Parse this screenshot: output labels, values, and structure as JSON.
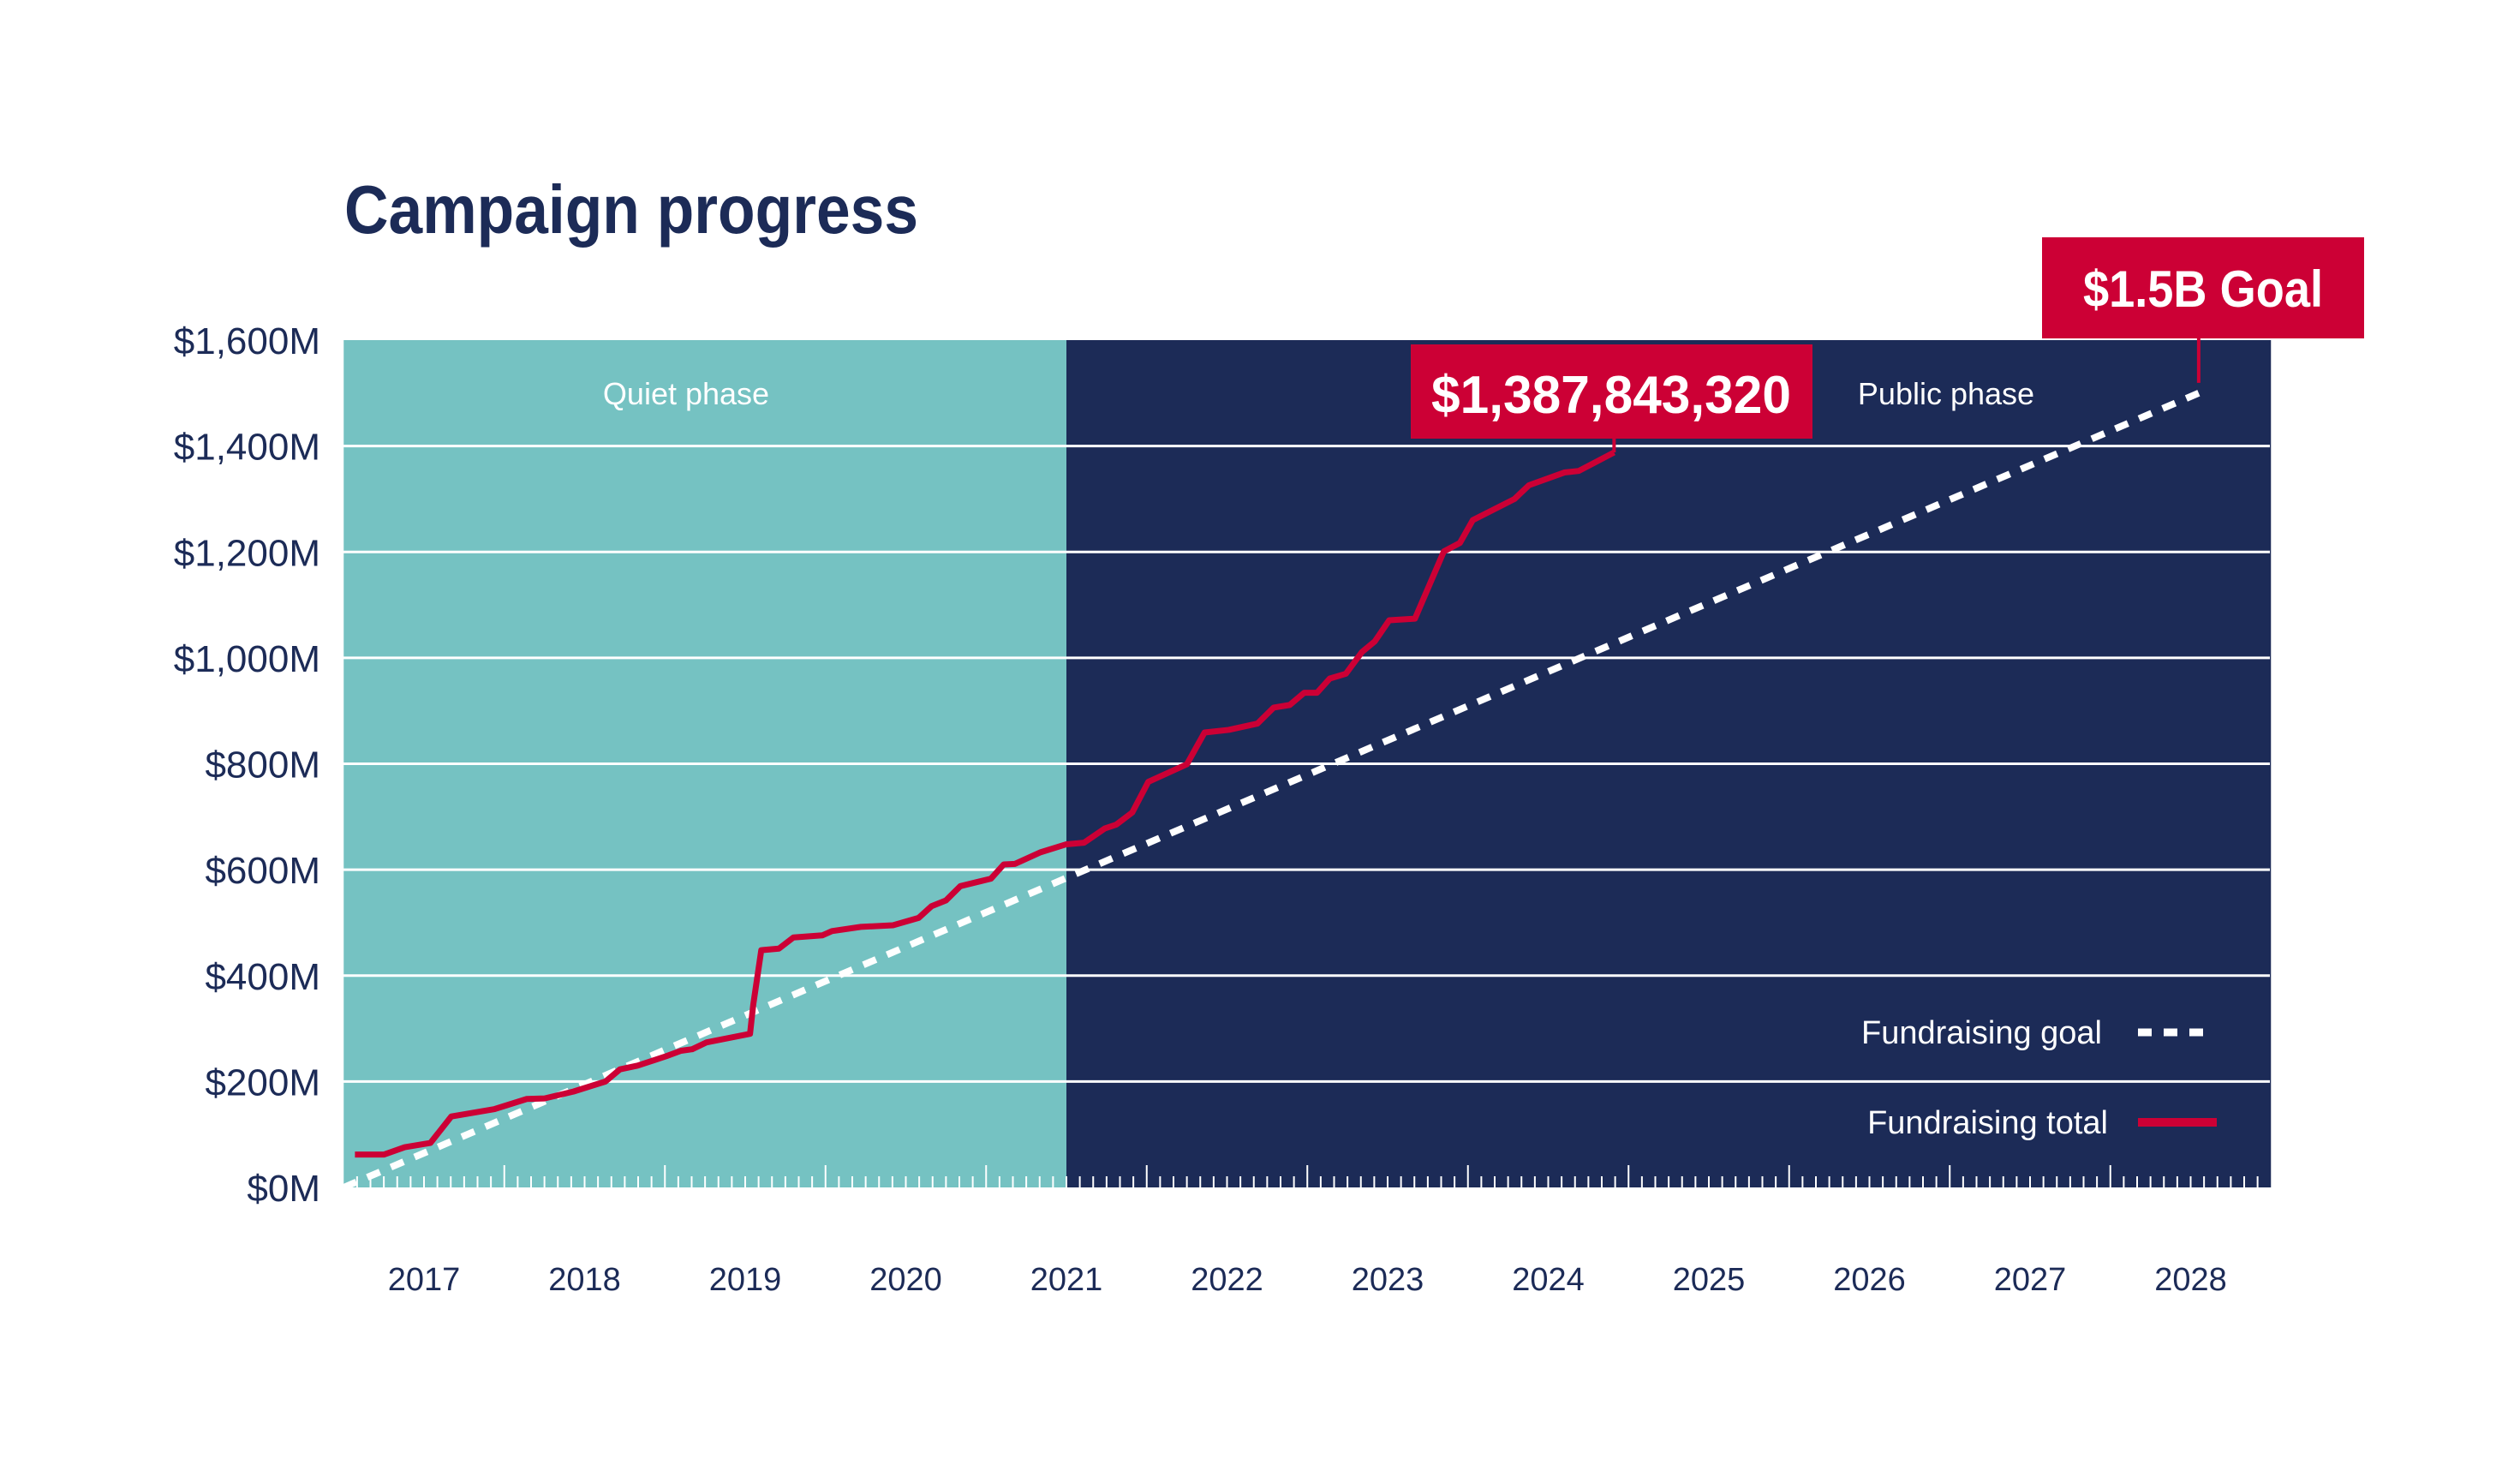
{
  "chart_data": {
    "type": "line",
    "title": "Campaign progress",
    "xlabel": "",
    "ylabel": "",
    "ylim": [
      0,
      1600
    ],
    "xlim": [
      2016.5,
      2028.5
    ],
    "y_ticks": [
      {
        "value": 0,
        "label": "$0M"
      },
      {
        "value": 200,
        "label": "$200M"
      },
      {
        "value": 400,
        "label": "$400M"
      },
      {
        "value": 600,
        "label": "$600M"
      },
      {
        "value": 800,
        "label": "$800M"
      },
      {
        "value": 1000,
        "label": "$1,000M"
      },
      {
        "value": 1200,
        "label": "$1,200M"
      },
      {
        "value": 1400,
        "label": "$1,400M"
      },
      {
        "value": 1600,
        "label": "$1,600M"
      }
    ],
    "x_tick_labels": [
      "2017",
      "2018",
      "2019",
      "2020",
      "2021",
      "2022",
      "2023",
      "2024",
      "2025",
      "2026",
      "2027",
      "2028"
    ],
    "grid": true,
    "legend_placement": "bottom-right",
    "phases": [
      {
        "label": "Quiet phase",
        "start": 2016.5,
        "end": 2021.0,
        "color": "#75c2c2"
      },
      {
        "label": "Public phase",
        "start": 2021.0,
        "end": 2028.5,
        "color": "#1c2b57"
      }
    ],
    "series": [
      {
        "name": "Fundraising goal",
        "style": "dashed",
        "color": "#ffffff",
        "x": [
          2016.5,
          2028.05
        ],
        "y": [
          0,
          1500
        ]
      },
      {
        "name": "Fundraising total",
        "style": "solid",
        "color": "#cc0035",
        "x": [
          2016.57,
          2016.75,
          2016.88,
          2017.04,
          2017.17,
          2017.44,
          2017.64,
          2017.75,
          2017.93,
          2018.13,
          2018.22,
          2018.33,
          2018.51,
          2018.6,
          2018.67,
          2018.76,
          2019.03,
          2019.05,
          2019.1,
          2019.21,
          2019.3,
          2019.48,
          2019.54,
          2019.72,
          2019.92,
          2020.08,
          2020.16,
          2020.25,
          2020.34,
          2020.53,
          2020.61,
          2020.68,
          2020.84,
          2021.0,
          2021.11,
          2021.24,
          2021.31,
          2021.41,
          2021.51,
          2021.75,
          2021.86,
          2022.01,
          2022.19,
          2022.29,
          2022.39,
          2022.48,
          2022.56,
          2022.64,
          2022.74,
          2022.84,
          2022.92,
          2023.01,
          2023.17,
          2023.35,
          2023.45,
          2023.53,
          2023.79,
          2023.88,
          2024.1,
          2024.19,
          2024.31,
          2024.41
        ],
        "y": [
          62,
          62,
          76,
          84,
          134,
          148,
          167,
          168,
          181,
          200,
          223,
          230,
          248,
          258,
          261,
          274,
          290,
          345,
          448,
          451,
          472,
          476,
          484,
          492,
          495,
          509,
          531,
          542,
          569,
          583,
          610,
          611,
          633,
          648,
          651,
          678,
          685,
          708,
          766,
          799,
          859,
          864,
          876,
          906,
          911,
          934,
          934,
          961,
          970,
          1011,
          1031,
          1071,
          1074,
          1201,
          1217,
          1260,
          1300,
          1326,
          1350,
          1353,
          1372,
          1388
        ]
      }
    ],
    "annotations": {
      "total_label": "$1,387,843,320",
      "goal_label": "$1.5B Goal"
    },
    "colors": {
      "accent": "#cc0035",
      "text": "#1c2b57",
      "quiet": "#75c2c2",
      "public": "#1c2b57"
    }
  }
}
